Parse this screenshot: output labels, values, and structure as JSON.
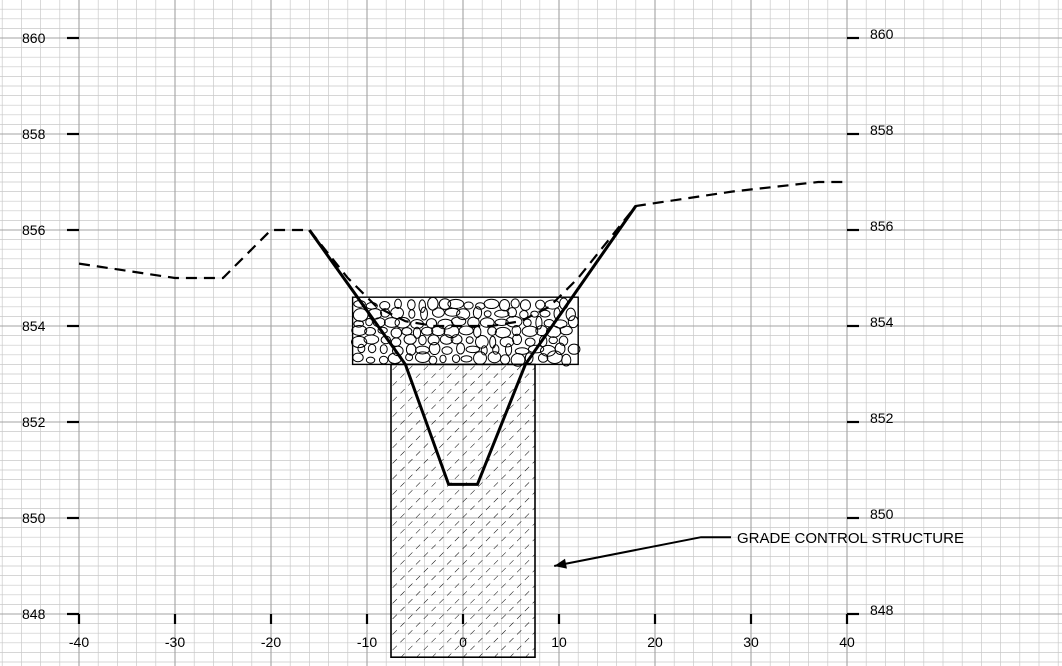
{
  "chart_data": {
    "type": "line",
    "title": "",
    "xlabel": "",
    "ylabel": "",
    "xlim": [
      -40,
      40
    ],
    "ylim": [
      848,
      860
    ],
    "x_ticks": [
      -40,
      -30,
      -20,
      -10,
      0,
      10,
      20,
      30,
      40
    ],
    "x_tick_labels": [
      "-40",
      "-30",
      "-20",
      "-10",
      "0",
      "10",
      "20",
      "30",
      "40"
    ],
    "y_ticks": [
      848,
      850,
      852,
      854,
      856,
      858,
      860
    ],
    "y_tick_labels": [
      "848",
      "850",
      "852",
      "854",
      "856",
      "858",
      "860"
    ],
    "grid": true,
    "series": [
      {
        "style": "dashed",
        "x": [
          -40,
          -30,
          -25,
          -20,
          -16,
          -12,
          -9,
          -6,
          -3,
          0,
          3,
          6,
          9,
          12,
          18,
          28,
          37,
          40
        ],
        "y": [
          855.3,
          855.0,
          855.0,
          856.0,
          856.0,
          855.0,
          854.4,
          854.1,
          854.0,
          854.0,
          854.0,
          854.1,
          854.4,
          855.0,
          856.5,
          856.8,
          857.0,
          857.0
        ]
      },
      {
        "style": "solid",
        "x": [
          -16,
          -6,
          -1.5,
          1.5,
          6.5,
          18
        ],
        "y": [
          856.0,
          853.2,
          850.7,
          850.7,
          853.2,
          856.5
        ]
      }
    ],
    "structures": [
      {
        "fill": "riprap",
        "x_range": [
          -11.5,
          12
        ],
        "y_top": 854.6,
        "y_bottom": 853.2
      },
      {
        "fill": "hatch",
        "x_range": [
          -7.5,
          7.5
        ],
        "y_top": 853.2,
        "y_bottom": 847.1
      }
    ],
    "annotations": [
      {
        "text": "GRADE CONTROL STRUCTURE",
        "arrow_target_x": 9.5,
        "arrow_target_y": 849.0,
        "text_x": 30,
        "text_y": 849.6
      }
    ]
  }
}
